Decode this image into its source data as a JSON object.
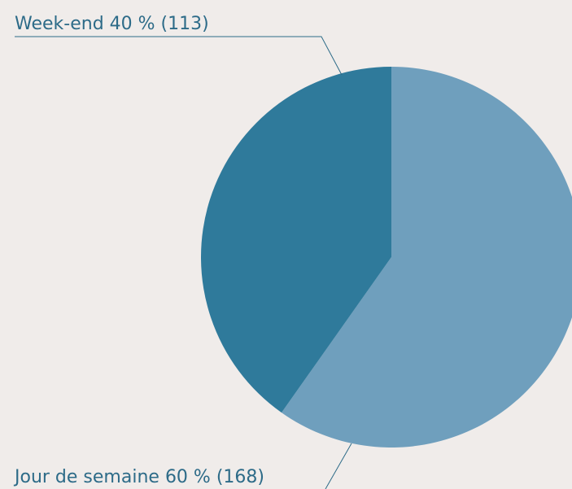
{
  "chart_data": {
    "type": "pie",
    "categories": [
      "Jour de semaine",
      "Week-end"
    ],
    "values": [
      168,
      113
    ],
    "value_labels": [
      "60 % (168)",
      "40 % (113)"
    ],
    "colors": [
      "#6f9fbd",
      "#2f7a9b"
    ]
  }
}
